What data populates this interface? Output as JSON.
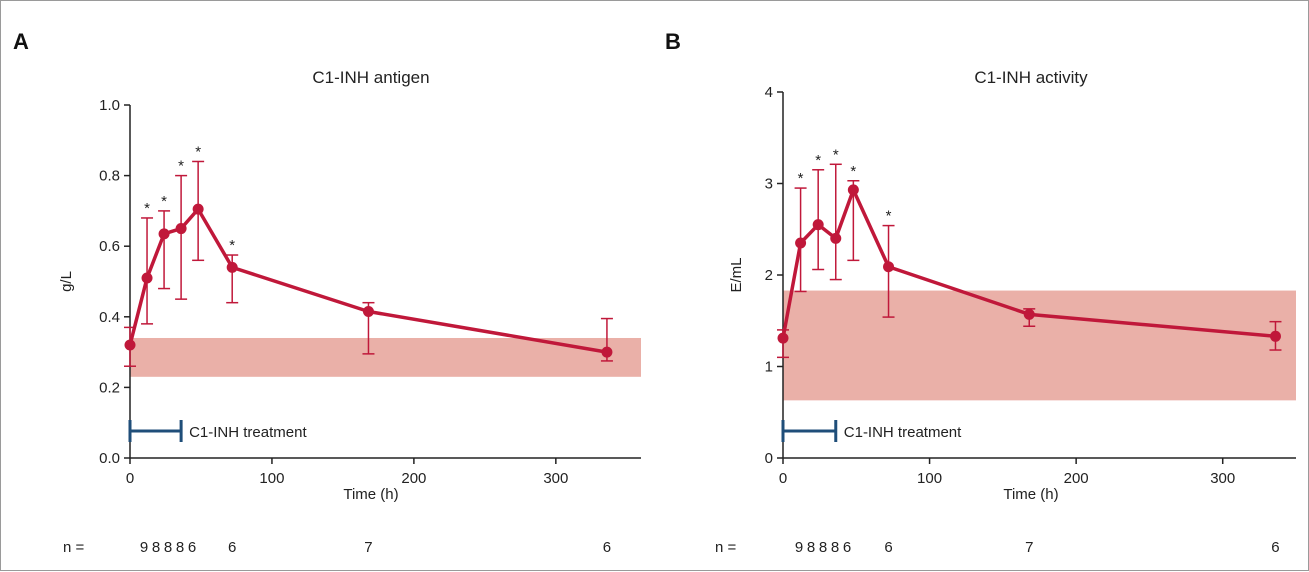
{
  "colors": {
    "series": "#c0183a",
    "range_band": "#eab0a8",
    "treatment_bar": "#1f4e79",
    "axis": "#222222"
  },
  "chart_data": [
    {
      "panel": "A",
      "type": "line",
      "title": "C1-INH antigen",
      "xlabel": "Time (h)",
      "ylabel": "g/L",
      "xlim": [
        0,
        360
      ],
      "ylim": [
        0,
        1.0
      ],
      "xticks": [
        0,
        100,
        200,
        300
      ],
      "yticks": [
        0.0,
        0.2,
        0.4,
        0.6,
        0.8,
        1.0
      ],
      "ytick_labels": [
        "0.0",
        "0.2",
        "0.4",
        "0.6",
        "0.8",
        "1.0"
      ],
      "series": [
        {
          "x": [
            0,
            12,
            24,
            36,
            48,
            72,
            168,
            336
          ],
          "y": [
            0.32,
            0.51,
            0.635,
            0.65,
            0.705,
            0.54,
            0.415,
            0.3
          ],
          "err_low": [
            0.26,
            0.38,
            0.48,
            0.45,
            0.56,
            0.44,
            0.295,
            0.275
          ],
          "err_high": [
            0.37,
            0.68,
            0.7,
            0.8,
            0.84,
            0.575,
            0.44,
            0.395
          ],
          "significant": [
            false,
            true,
            true,
            true,
            true,
            true,
            false,
            false
          ]
        }
      ],
      "reference_range": [
        0.23,
        0.34
      ],
      "treatment": {
        "start": 0,
        "end": 36,
        "label": "C1-INH treatment"
      },
      "n_prefix": "n =",
      "n_values": [
        "9",
        "8",
        "8",
        "8",
        "6",
        "6",
        "7",
        "6"
      ],
      "significance_marker": "*"
    },
    {
      "panel": "B",
      "type": "line",
      "title": "C1-INH activity",
      "xlabel": "Time (h)",
      "ylabel": "E/mL",
      "xlim": [
        0,
        350
      ],
      "ylim": [
        0,
        4
      ],
      "xticks": [
        0,
        100,
        200,
        300
      ],
      "yticks": [
        0,
        1,
        2,
        3,
        4
      ],
      "ytick_labels": [
        "0",
        "1",
        "2",
        "3",
        "4"
      ],
      "series": [
        {
          "x": [
            0,
            12,
            24,
            36,
            48,
            72,
            168,
            336
          ],
          "y": [
            1.31,
            2.35,
            2.55,
            2.4,
            2.93,
            2.09,
            1.57,
            1.33
          ],
          "err_low": [
            1.1,
            1.82,
            2.06,
            1.95,
            2.16,
            1.54,
            1.44,
            1.18
          ],
          "err_high": [
            1.4,
            2.95,
            3.15,
            3.21,
            3.03,
            2.54,
            1.63,
            1.49
          ],
          "significant": [
            false,
            true,
            true,
            true,
            true,
            true,
            false,
            false
          ]
        }
      ],
      "reference_range": [
        0.63,
        1.83
      ],
      "treatment": {
        "start": 0,
        "end": 36,
        "label": "C1-INH treatment"
      },
      "n_prefix": "n =",
      "n_values": [
        "9",
        "8",
        "8",
        "8",
        "6",
        "6",
        "7",
        "6"
      ],
      "significance_marker": "*"
    }
  ]
}
